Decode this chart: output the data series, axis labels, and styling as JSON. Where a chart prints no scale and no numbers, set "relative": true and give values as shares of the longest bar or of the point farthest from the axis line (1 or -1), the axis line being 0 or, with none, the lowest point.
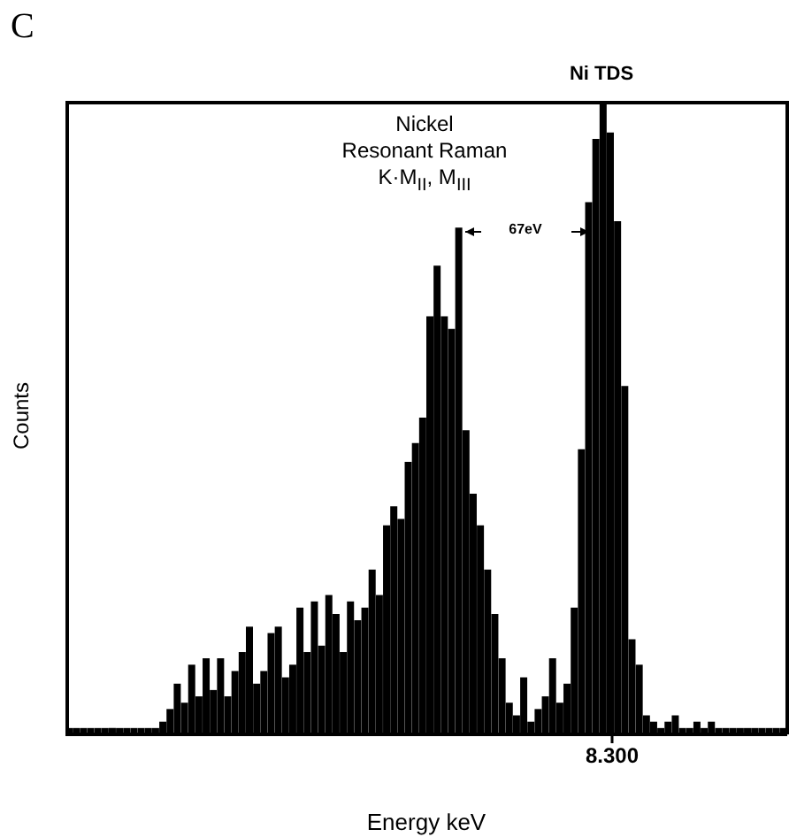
{
  "chart_data": {
    "type": "bar",
    "title": "C",
    "xlabel": "Energy keV",
    "ylabel": "Counts",
    "relative": true,
    "color": "#000000",
    "categories": [
      null,
      null,
      null,
      null,
      null,
      null,
      null,
      null,
      null,
      null,
      null,
      null,
      null,
      null,
      null,
      null,
      null,
      null,
      null,
      null,
      null,
      null,
      null,
      null,
      null,
      null,
      null,
      null,
      null,
      null,
      null,
      null,
      null,
      null,
      null,
      null,
      null,
      null,
      null,
      null,
      null,
      null,
      null,
      null,
      null,
      null,
      null,
      null,
      null,
      null,
      null,
      null,
      null,
      null,
      null,
      null,
      null,
      null,
      null,
      null,
      null,
      null,
      null,
      null,
      null,
      null,
      null,
      null,
      null,
      null,
      null,
      null,
      null,
      null,
      null,
      null,
      null,
      null,
      null,
      null,
      null,
      null,
      null,
      null,
      null,
      null,
      null,
      null,
      null,
      null,
      null,
      null,
      null,
      null,
      null,
      null,
      null,
      null,
      null,
      null
    ],
    "values": [
      0.01,
      0.01,
      0.01,
      0.01,
      0.01,
      0.01,
      0.01,
      0.01,
      0.01,
      0.01,
      0.01,
      0.01,
      0.01,
      0.02,
      0.04,
      0.08,
      0.05,
      0.11,
      0.06,
      0.12,
      0.07,
      0.12,
      0.06,
      0.1,
      0.13,
      0.17,
      0.08,
      0.1,
      0.16,
      0.17,
      0.09,
      0.11,
      0.2,
      0.13,
      0.21,
      0.14,
      0.22,
      0.19,
      0.13,
      0.21,
      0.18,
      0.2,
      0.26,
      0.22,
      0.33,
      0.36,
      0.34,
      0.43,
      0.46,
      0.5,
      0.66,
      0.74,
      0.66,
      0.64,
      0.8,
      0.48,
      0.38,
      0.33,
      0.26,
      0.19,
      0.12,
      0.05,
      0.03,
      0.09,
      0.02,
      0.04,
      0.06,
      0.12,
      0.05,
      0.08,
      0.2,
      0.45,
      0.84,
      0.94,
      1.0,
      0.95,
      0.81,
      0.55,
      0.15,
      0.11,
      0.03,
      0.02,
      0.01,
      0.02,
      0.03,
      0.01,
      0.01,
      0.02,
      0.01,
      0.02,
      0.01,
      0.01,
      0.01,
      0.01,
      0.01,
      0.01,
      0.01,
      0.01,
      0.01,
      0.01
    ],
    "annotations": [
      "Nickel\nResonant Raman\nK·M$_{II}$, M$_{III}$",
      "Ni TDS",
      "67eV",
      "8.300"
    ]
  }
}
